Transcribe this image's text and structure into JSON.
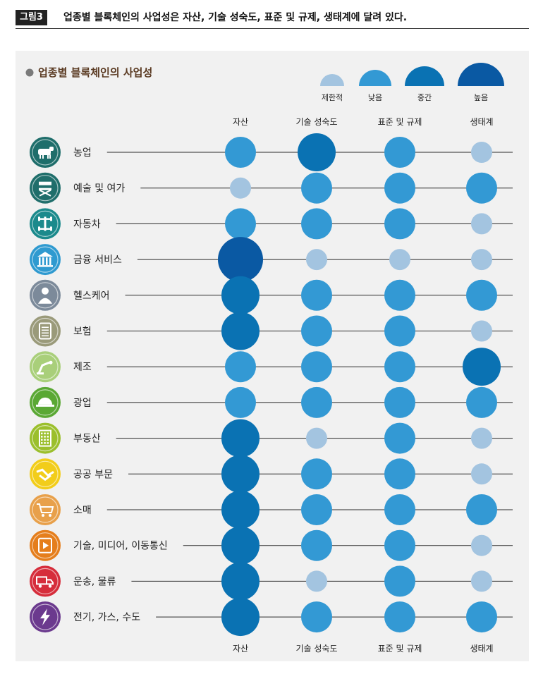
{
  "figure": {
    "badge": "그림3",
    "title": "업종별 블록체인의 사업성은 자산, 기술 성숙도, 표준 및 규제, 생태계에 달려 있다."
  },
  "colors": {
    "level_1": "#a3c4e0",
    "level_2": "#3399d4",
    "level_3": "#0a72b3",
    "level_4": "#0a59a3",
    "panel": "#f1f1f1",
    "line": "#2a2a2a"
  },
  "chart_data": {
    "type": "bubble-matrix",
    "title": "업종별 블록체인의 사업성",
    "levels": [
      "제한적",
      "낮음",
      "중간",
      "높음"
    ],
    "columns": [
      "자산",
      "기술 성숙도",
      "표준 및 규제",
      "생태계"
    ],
    "rows": [
      {
        "label": "농업",
        "icon": "cow-icon",
        "icon_color": "#1f6e6b",
        "values": [
          2,
          3,
          2,
          1
        ]
      },
      {
        "label": "예술 및 여가",
        "icon": "director-chair-icon",
        "icon_color": "#1f6e6b",
        "values": [
          1,
          2,
          2,
          2
        ]
      },
      {
        "label": "자동차",
        "icon": "axle-chassis-icon",
        "icon_color": "#1b8a8c",
        "values": [
          2,
          2,
          2,
          1
        ]
      },
      {
        "label": "금융 서비스",
        "icon": "bank-building-icon",
        "icon_color": "#2f9ad0",
        "values": [
          4,
          1,
          1,
          1
        ]
      },
      {
        "label": "헬스케어",
        "icon": "doctor-icon",
        "icon_color": "#7c8a9a",
        "values": [
          3,
          2,
          2,
          2
        ]
      },
      {
        "label": "보험",
        "icon": "document-icon",
        "icon_color": "#9a9a7a",
        "values": [
          3,
          2,
          2,
          1
        ]
      },
      {
        "label": "제조",
        "icon": "robot-arm-icon",
        "icon_color": "#a9cf7a",
        "values": [
          2,
          2,
          2,
          3
        ]
      },
      {
        "label": "광업",
        "icon": "hard-hat-icon",
        "icon_color": "#5aa834",
        "values": [
          2,
          2,
          2,
          2
        ]
      },
      {
        "label": "부동산",
        "icon": "building-icon",
        "icon_color": "#9bbf2c",
        "values": [
          3,
          1,
          2,
          1
        ]
      },
      {
        "label": "공공 부문",
        "icon": "handshake-icon",
        "icon_color": "#f2cd1a",
        "values": [
          3,
          2,
          2,
          1
        ]
      },
      {
        "label": "소매",
        "icon": "shopping-cart-icon",
        "icon_color": "#e8a04a",
        "values": [
          3,
          2,
          2,
          2
        ]
      },
      {
        "label": "기술, 미디어, 이동통신",
        "icon": "film-play-icon",
        "icon_color": "#e57e1c",
        "values": [
          3,
          2,
          2,
          1
        ]
      },
      {
        "label": "운송, 물류",
        "icon": "truck-icon",
        "icon_color": "#d62d3b",
        "values": [
          3,
          1,
          2,
          1
        ]
      },
      {
        "label": "전기, 가스, 수도",
        "icon": "lightning-icon",
        "icon_color": "#6b3a8e",
        "values": [
          3,
          2,
          2,
          2
        ]
      }
    ]
  }
}
